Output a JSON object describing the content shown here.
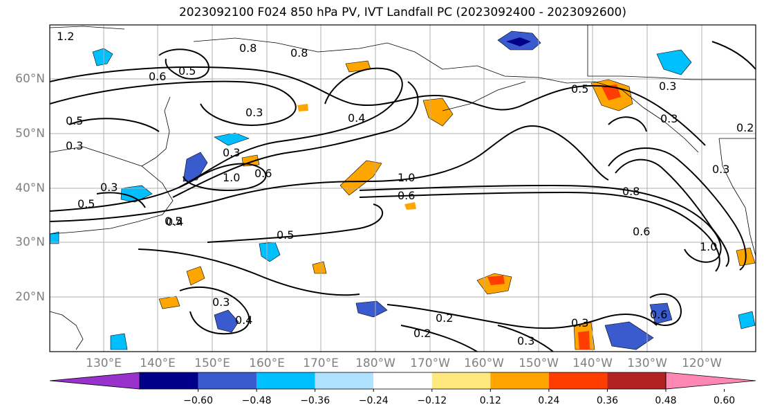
{
  "title": "2023092100 F024 850 hPa PV, IVT Landfall PC (2023092400 - 2023092600)",
  "lat_labels": [
    "60°N",
    "50°N",
    "40°N",
    "30°N",
    "20°N"
  ],
  "lon_labels": [
    "130°E",
    "140°E",
    "150°E",
    "160°E",
    "170°E",
    "180°W",
    "170°W",
    "160°W",
    "150°W",
    "140°W",
    "130°W",
    "120°W"
  ],
  "contour_labels": [
    "1.2",
    "0.6",
    "0.5",
    "0.8",
    "0.8",
    "0.5",
    "0.5",
    "0.3",
    "0.4",
    "0.3",
    "0.5",
    "0.3",
    "0.3",
    "0.5",
    "1.0",
    "0.6",
    "0.4",
    "1.0",
    "0.6",
    "0.5",
    "0.3",
    "0.2",
    "0.2",
    "0.3",
    "0.4",
    "0.3",
    "0.3",
    "0.6",
    "0.8",
    "0.6",
    "1.0",
    "0.3",
    "0.3",
    "0.2"
  ],
  "colorbar": {
    "ticks": [
      "−0.60",
      "−0.48",
      "−0.36",
      "−0.24",
      "−0.12",
      "0.12",
      "0.24",
      "0.36",
      "0.48",
      "0.60"
    ],
    "colors": [
      "#9932cc",
      "#00008b",
      "#3a5bcd",
      "#00bfff",
      "#b0e2ff",
      "#ffffff",
      "#ffe97f",
      "#ffa500",
      "#ff3d00",
      "#b22222",
      "#ff87b4"
    ]
  }
}
